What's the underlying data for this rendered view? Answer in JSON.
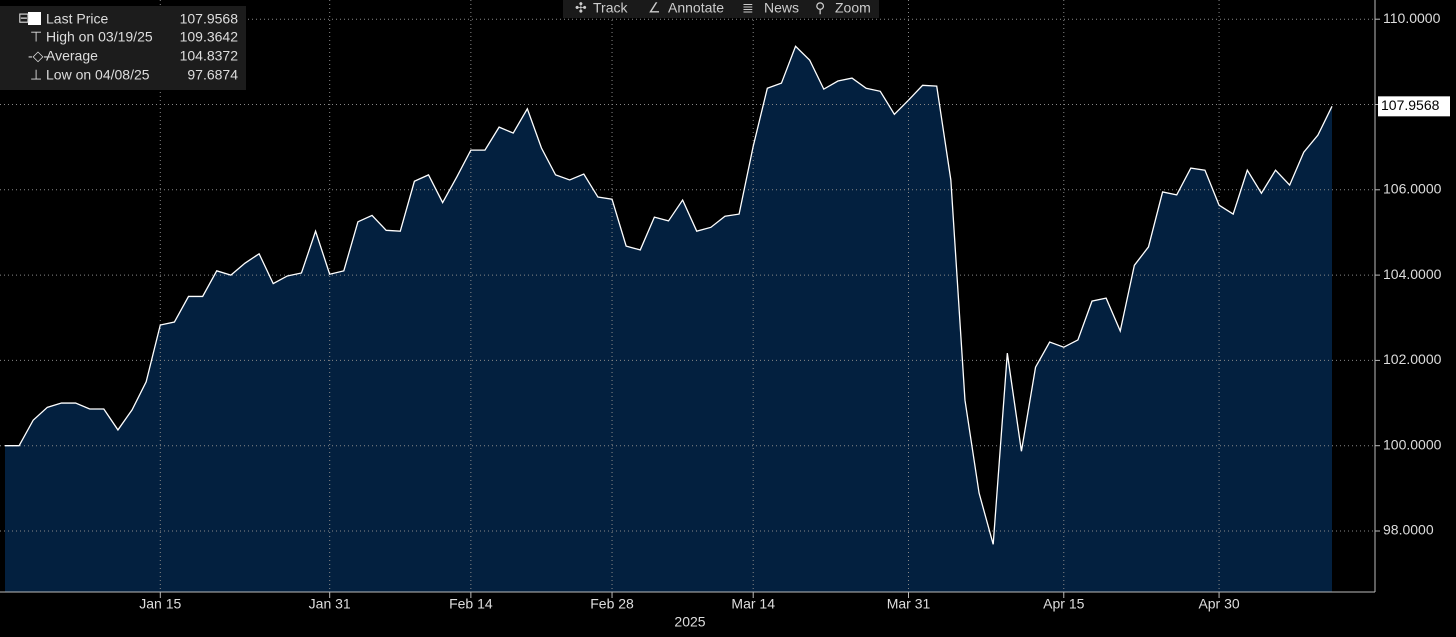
{
  "toolbar": [
    "Track",
    "Annotate",
    "News",
    "Zoom"
  ],
  "chart_data": {
    "type": "area",
    "x_label": "2025",
    "categories": [
      null,
      null,
      null,
      null,
      null,
      null,
      null,
      null,
      null,
      null,
      null,
      "Jan 15",
      null,
      null,
      null,
      null,
      null,
      null,
      null,
      null,
      null,
      null,
      null,
      "Jan 31",
      null,
      null,
      null,
      null,
      null,
      null,
      null,
      null,
      null,
      "Feb 14",
      null,
      null,
      null,
      null,
      null,
      null,
      null,
      null,
      null,
      "Feb 28",
      null,
      null,
      null,
      null,
      null,
      null,
      null,
      null,
      null,
      "Mar 14",
      null,
      null,
      null,
      null,
      null,
      null,
      null,
      null,
      null,
      null,
      "Mar 31",
      null,
      null,
      null,
      null,
      null,
      null,
      null,
      null,
      null,
      null,
      "Apr 15",
      null,
      null,
      null,
      null,
      null,
      null,
      null,
      null,
      null,
      null,
      "Apr 30",
      null,
      null,
      null,
      null,
      null,
      null,
      null,
      null
    ],
    "series": [
      {
        "name": "Last Price",
        "color": "#ffffff",
        "fill": "#03203f",
        "values": [
          100.0,
          100.0,
          100.6,
          100.9,
          101.0,
          101.0,
          100.86,
          100.86,
          100.37,
          100.84,
          101.5,
          102.83,
          102.9,
          103.5,
          103.5,
          104.1,
          104.0,
          104.28,
          104.5,
          103.8,
          103.98,
          104.05,
          105.03,
          104.02,
          104.1,
          105.25,
          105.4,
          105.05,
          105.03,
          106.2,
          106.35,
          105.7,
          106.3,
          106.93,
          106.93,
          107.47,
          107.33,
          107.9,
          106.98,
          106.35,
          106.23,
          106.37,
          105.83,
          105.78,
          104.68,
          104.59,
          105.36,
          105.27,
          105.76,
          105.03,
          105.12,
          105.38,
          105.43,
          107.02,
          108.38,
          108.5,
          109.3642,
          109.04,
          108.36,
          108.55,
          108.62,
          108.38,
          108.31,
          107.77,
          108.1,
          108.45,
          108.43,
          106.23,
          101.07,
          98.89,
          97.6874,
          102.17,
          99.87,
          101.84,
          102.43,
          102.31,
          102.48,
          103.39,
          103.46,
          102.69,
          104.23,
          104.66,
          105.95,
          105.88,
          106.51,
          106.46,
          105.64,
          105.43,
          106.46,
          105.92,
          106.46,
          106.11,
          106.88,
          107.28,
          107.9568
        ]
      }
    ],
    "stats": [
      {
        "label": "High on 03/19/25",
        "value": 109.3642
      },
      {
        "label": "Average",
        "value": 104.8372
      },
      {
        "label": "Low on 04/08/25",
        "value": 97.6874
      }
    ],
    "ylim": [
      96.57,
      110.45
    ],
    "yticks": [
      {
        "value": 98,
        "label": "98.0000"
      },
      {
        "value": 100,
        "label": "100.0000"
      },
      {
        "value": 102,
        "label": "102.0000"
      },
      {
        "value": 104,
        "label": "104.0000"
      },
      {
        "value": 106,
        "label": "106.0000"
      },
      {
        "value": 108,
        "label": "108.0000"
      },
      {
        "value": 110,
        "label": "110.0000"
      }
    ],
    "grid": true
  }
}
